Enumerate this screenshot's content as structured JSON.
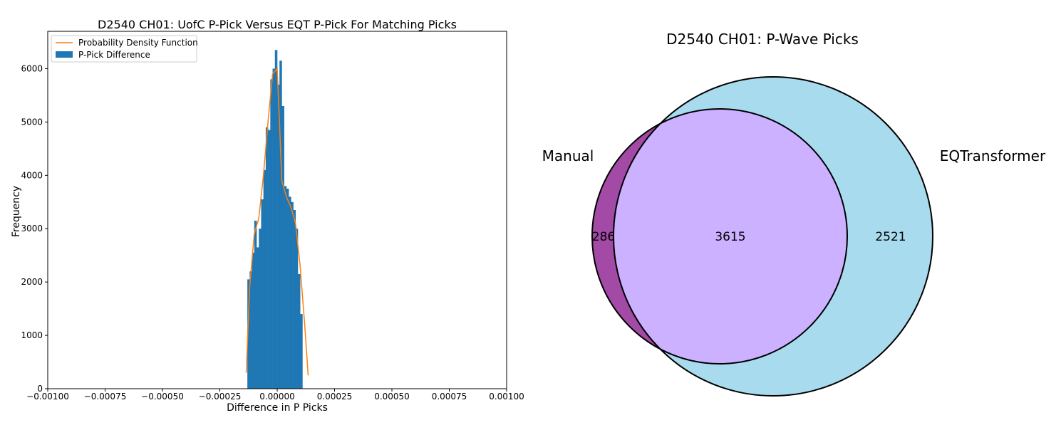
{
  "chart_data": [
    {
      "type": "bar",
      "subtype": "histogram",
      "title": "D2540 CH01: UofC P-Pick Versus EQT P-Pick For Matching Picks",
      "xlabel": "Difference in P Picks",
      "ylabel": "Frequency",
      "xlim": [
        -0.001,
        0.001
      ],
      "ylim": [
        0,
        6700
      ],
      "xticks": [
        -0.001,
        -0.00075,
        -0.0005,
        -0.00025,
        0.0,
        0.00025,
        0.0005,
        0.00075,
        0.001
      ],
      "xtick_labels": [
        "−0.00100",
        "−0.00075",
        "−0.00050",
        "−0.00025",
        "0.00000",
        "0.00025",
        "0.00050",
        "0.00075",
        "0.00100"
      ],
      "yticks": [
        0,
        1000,
        2000,
        3000,
        4000,
        5000,
        6000
      ],
      "ytick_labels": [
        "0",
        "1000",
        "2000",
        "3000",
        "4000",
        "5000",
        "6000"
      ],
      "grid": false,
      "legend_position": "top-left",
      "colors": {
        "bars": "#1f77b4",
        "pdf_line": "#ff7f0e"
      },
      "series": [
        {
          "name": "P-Pick Difference",
          "kind": "bars",
          "bin_start": -0.00013,
          "bin_width": 1e-05,
          "values": [
            2050,
            2200,
            2550,
            3150,
            2650,
            3000,
            3550,
            4100,
            4900,
            4850,
            5800,
            6000,
            6350,
            5700,
            6150,
            5300,
            3800,
            3750,
            3600,
            3500,
            3350,
            3000,
            2150,
            1400
          ]
        },
        {
          "name": "Probability Density Function",
          "kind": "line",
          "x": [
            -0.000135,
            -0.00012,
            -0.0001,
            -8e-05,
            -6e-05,
            -4e-05,
            -2e-05,
            0.0,
            1e-05,
            2e-05,
            4e-05,
            6e-05,
            8e-05,
            0.0001,
            0.00012,
            0.000135
          ],
          "y": [
            300,
            1900,
            2900,
            3200,
            4000,
            5000,
            5900,
            6000,
            5000,
            3900,
            3600,
            3400,
            3100,
            2300,
            1200,
            250
          ]
        }
      ]
    },
    {
      "type": "venn",
      "title": "D2540 CH01: P-Wave Picks",
      "sets": [
        {
          "name": "Manual",
          "color": "#a24aa5"
        },
        {
          "name": "EQTransformer",
          "color": "#a8dbed"
        }
      ],
      "regions": [
        {
          "sets": [
            "Manual"
          ],
          "label": "286"
        },
        {
          "sets": [
            "Manual",
            "EQTransformer"
          ],
          "label": "3615",
          "color": "#cbb1ff"
        },
        {
          "sets": [
            "EQTransformer"
          ],
          "label": "2521"
        }
      ]
    }
  ]
}
